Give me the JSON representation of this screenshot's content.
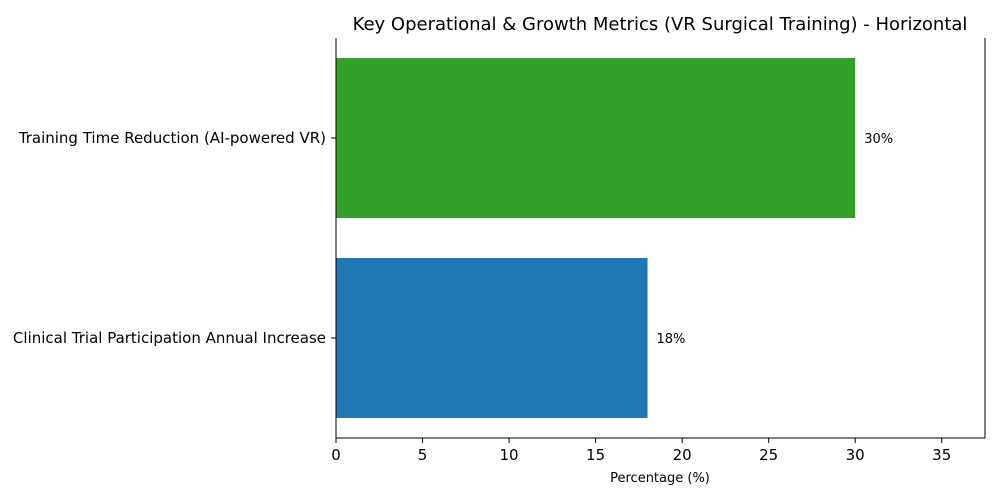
{
  "chart_data": {
    "type": "bar",
    "orientation": "horizontal",
    "title": "Key Operational & Growth Metrics (VR Surgical Training) - Horizontal",
    "xlabel": "Percentage (%)",
    "ylabel": "",
    "categories": [
      "Clinical Trial Participation Annual Increase",
      "Training Time Reduction (AI-powered VR)"
    ],
    "values": [
      18,
      30
    ],
    "data_labels": [
      "18%",
      "30%"
    ],
    "colors": [
      "#1f77b4",
      "#33a02c"
    ],
    "xlim": [
      0,
      37.5
    ],
    "xticks": [
      0,
      5,
      10,
      15,
      20,
      25,
      30,
      35
    ],
    "grid": false,
    "legend": "none"
  }
}
